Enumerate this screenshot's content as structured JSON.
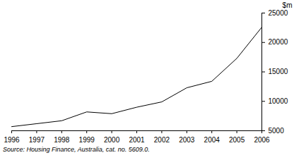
{
  "chart_data": {
    "type": "line",
    "x": [
      1996,
      1997,
      1998,
      1999,
      2000,
      2001,
      2002,
      2003,
      2004,
      2005,
      2006
    ],
    "values": [
      5700,
      6200,
      6700,
      8200,
      7900,
      9000,
      9900,
      12300,
      13400,
      17300,
      22600
    ],
    "color": "#000000",
    "xlim": [
      1996,
      2006
    ],
    "xticks": [
      1996,
      1997,
      1998,
      1999,
      2000,
      2001,
      2002,
      2003,
      2004,
      2005,
      2006
    ],
    "ylim": [
      5000,
      25000
    ],
    "yticks": [
      5000,
      10000,
      15000,
      20000,
      25000
    ],
    "ylabel": "$m",
    "caption": "Source: Housing Finance, Australia, cat. no. 5609.0.",
    "grid": false
  }
}
